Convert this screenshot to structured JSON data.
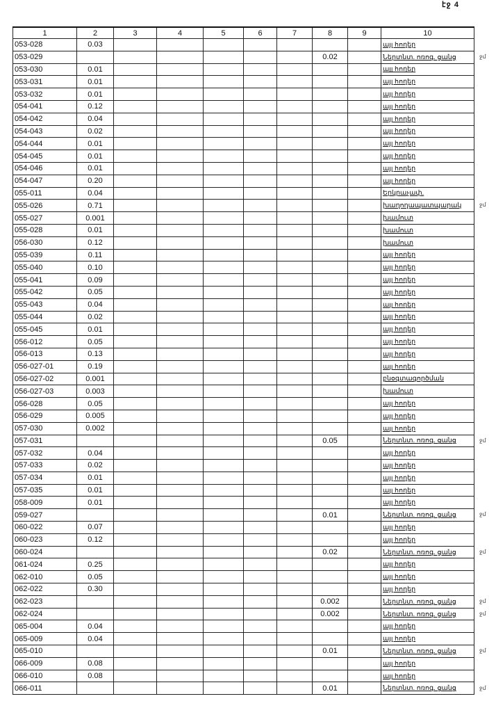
{
  "page_label": "էջ 4",
  "columns": [
    "1",
    "2",
    "3",
    "4",
    "5",
    "6",
    "7",
    "8",
    "9",
    "10"
  ],
  "rows": [
    {
      "c1": "053-028",
      "c2": "0.03",
      "c8": "",
      "c10": "այլ հողեր"
    },
    {
      "c1": "053-029",
      "c2": "",
      "c8": "0.02",
      "c10": "Ներտնտ. ոռոգ. ցանց",
      "mark": "ջմ"
    },
    {
      "c1": "053-030",
      "c2": "0.01",
      "c8": "",
      "c10": "այլ հողեր"
    },
    {
      "c1": "053-031",
      "c2": "0.01",
      "c8": "",
      "c10": "այլ հողեր"
    },
    {
      "c1": "053-032",
      "c2": "0.01",
      "c8": "",
      "c10": "այլ հողեր"
    },
    {
      "c1": "054-041",
      "c2": "0.12",
      "c8": "",
      "c10": "այլ հողեր"
    },
    {
      "c1": "054-042",
      "c2": "0.04",
      "c8": "",
      "c10": "այլ հողեր"
    },
    {
      "c1": "054-043",
      "c2": "0.02",
      "c8": "",
      "c10": "այլ հողեր"
    },
    {
      "c1": "054-044",
      "c2": "0.01",
      "c8": "",
      "c10": "այլ հողեր"
    },
    {
      "c1": "054-045",
      "c2": "0.01",
      "c8": "",
      "c10": "այլ հողեր"
    },
    {
      "c1": "054-046",
      "c2": "0.01",
      "c8": "",
      "c10": "այլ հողեր"
    },
    {
      "c1": "054-047",
      "c2": "0.20",
      "c8": "",
      "c10": "այլ հողեր"
    },
    {
      "c1": "055-011",
      "c2": "0.04",
      "c8": "",
      "c10": "Երկրաչափ."
    },
    {
      "c1": "055-026",
      "c2": "0.71",
      "c8": "",
      "c10": "խաղողապատպարակ",
      "mark": "ջմ"
    },
    {
      "c1": "055-027",
      "c2": "0.001",
      "c8": "",
      "c10": "խամուտ"
    },
    {
      "c1": "055-028",
      "c2": "0.01",
      "c8": "",
      "c10": "խամուտ"
    },
    {
      "c1": "056-030",
      "c2": "0.12",
      "c8": "",
      "c10": "խամուտ"
    },
    {
      "c1": "055-039",
      "c2": "0.11",
      "c8": "",
      "c10": "այլ հողեր"
    },
    {
      "c1": "055-040",
      "c2": "0.10",
      "c8": "",
      "c10": "այլ հողեր"
    },
    {
      "c1": "055-041",
      "c2": "0.09",
      "c8": "",
      "c10": "այլ հողեր"
    },
    {
      "c1": "055-042",
      "c2": "0.05",
      "c8": "",
      "c10": "այլ հողեր"
    },
    {
      "c1": "055-043",
      "c2": "0.04",
      "c8": "",
      "c10": "այլ հողեր"
    },
    {
      "c1": "055-044",
      "c2": "0.02",
      "c8": "",
      "c10": "այլ հողեր"
    },
    {
      "c1": "055-045",
      "c2": "0.01",
      "c8": "",
      "c10": "այլ հողեր"
    },
    {
      "c1": "056-012",
      "c2": "0.05",
      "c8": "",
      "c10": "այլ հողեր"
    },
    {
      "c1": "056-013",
      "c2": "0.13",
      "c8": "",
      "c10": "այլ հողեր"
    },
    {
      "c1": "056-027-01",
      "c2": "0.19",
      "c8": "",
      "c10": "այլ հողեր"
    },
    {
      "c1": "056-027-02",
      "c2": "0.001",
      "c8": "",
      "c10": "բնօգտագործման"
    },
    {
      "c1": "056-027-03",
      "c2": "0.003",
      "c8": "",
      "c10": "խամուտ"
    },
    {
      "c1": "056-028",
      "c2": "0.05",
      "c8": "",
      "c10": "այլ հողեր"
    },
    {
      "c1": "056-029",
      "c2": "0.005",
      "c8": "",
      "c10": "այլ հողեր"
    },
    {
      "c1": "057-030",
      "c2": "0.002",
      "c8": "",
      "c10": "այլ հողեր"
    },
    {
      "c1": "057-031",
      "c2": "",
      "c8": "0.05",
      "c10": "Ներտնտ. ոռոգ. ցանց",
      "mark": "ջմ"
    },
    {
      "c1": "057-032",
      "c2": "0.04",
      "c8": "",
      "c10": "այլ հողեր"
    },
    {
      "c1": "057-033",
      "c2": "0.02",
      "c8": "",
      "c10": "այլ հողեր"
    },
    {
      "c1": "057-034",
      "c2": "0.01",
      "c8": "",
      "c10": "այլ հողեր"
    },
    {
      "c1": "057-035",
      "c2": "0.01",
      "c8": "",
      "c10": "այլ հողեր"
    },
    {
      "c1": "058-009",
      "c2": "0.01",
      "c8": "",
      "c10": "այլ հողեր"
    },
    {
      "c1": "059-027",
      "c2": "",
      "c8": "0.01",
      "c10": "Ներտնտ. ոռոգ. ցանց",
      "mark": "ջմ"
    },
    {
      "c1": "060-022",
      "c2": "0.07",
      "c8": "",
      "c10": "այլ հողեր"
    },
    {
      "c1": "060-023",
      "c2": "0.12",
      "c8": "",
      "c10": "այլ հողեր"
    },
    {
      "c1": "060-024",
      "c2": "",
      "c8": "0.02",
      "c10": "Ներտնտ. ոռոգ. ցանց",
      "mark": "ջմ"
    },
    {
      "c1": "061-024",
      "c2": "0.25",
      "c8": "",
      "c10": "այլ հողեր"
    },
    {
      "c1": "062-010",
      "c2": "0.05",
      "c8": "",
      "c10": "այլ հողեր"
    },
    {
      "c1": "062-022",
      "c2": "0.30",
      "c8": "",
      "c10": "այլ հողեր"
    },
    {
      "c1": "062-023",
      "c2": "",
      "c8": "0.002",
      "c10": "Ներտնտ. ոռոգ. ցանց",
      "mark": "ջմ"
    },
    {
      "c1": "062-024",
      "c2": "",
      "c8": "0.002",
      "c10": "Ներտնտ. ոռոգ. ցանց",
      "mark": "ջմ"
    },
    {
      "c1": "065-004",
      "c2": "0.04",
      "c8": "",
      "c10": "այլ հողեր"
    },
    {
      "c1": "065-009",
      "c2": "0.04",
      "c8": "",
      "c10": "այլ հողեր"
    },
    {
      "c1": "065-010",
      "c2": "",
      "c8": "0.01",
      "c10": "Ներտնտ. ոռոգ. ցանց",
      "mark": "ջմ"
    },
    {
      "c1": "066-009",
      "c2": "0.08",
      "c8": "",
      "c10": "այլ հողեր"
    },
    {
      "c1": "066-010",
      "c2": "0.08",
      "c8": "",
      "c10": "այլ հողեր"
    },
    {
      "c1": "066-011",
      "c2": "",
      "c8": "0.01",
      "c10": "Ներտնտ. ոռոգ. ցանց",
      "mark": "ջմ"
    }
  ]
}
